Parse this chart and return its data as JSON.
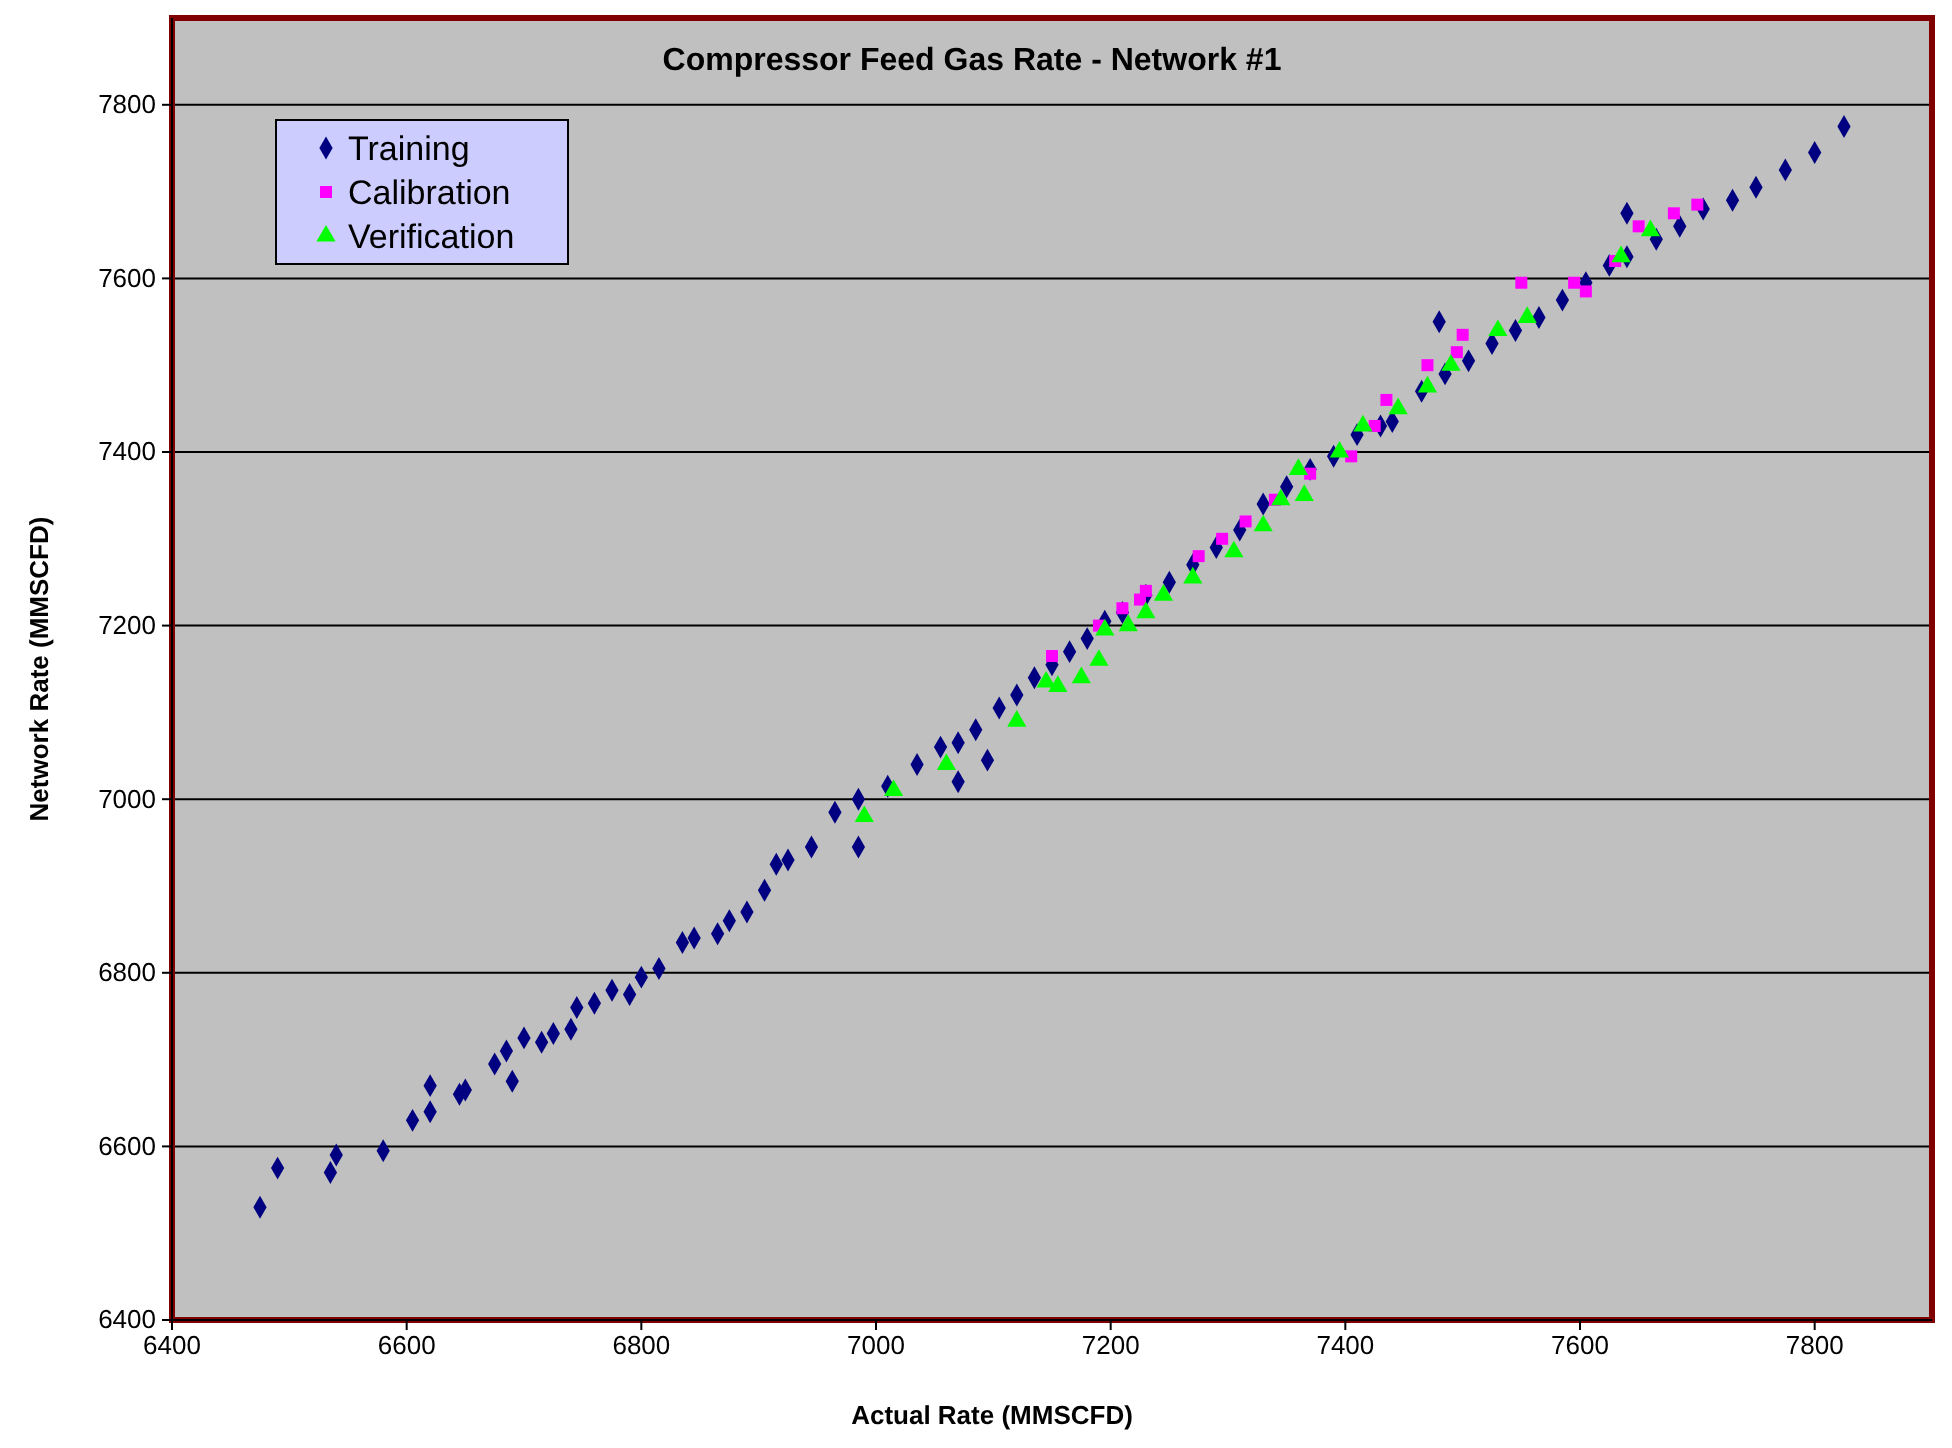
{
  "chart_data": {
    "type": "scatter",
    "title": "Compressor Feed Gas Rate - Network #1",
    "xlabel": "Actual Rate (MMSCFD)",
    "ylabel": "Network Rate (MMSCFD)",
    "xlim": [
      6400,
      7900
    ],
    "xticks": [
      6400,
      6600,
      6800,
      7000,
      7200,
      7400,
      7600,
      7800
    ],
    "ylim": [
      6400,
      7900
    ],
    "yticks": [
      6400,
      6600,
      6800,
      7000,
      7200,
      7400,
      7600,
      7800
    ],
    "grid": "y",
    "legend": "top left",
    "series": [
      {
        "name": "Training",
        "color": "#000080",
        "marker": "diamond",
        "x": [
          6475,
          6490,
          6535,
          6540,
          6580,
          6605,
          6620,
          6620,
          6645,
          6650,
          6675,
          6685,
          6690,
          6700,
          6715,
          6725,
          6740,
          6745,
          6760,
          6775,
          6790,
          6800,
          6815,
          6835,
          6845,
          6865,
          6875,
          6890,
          6905,
          6915,
          6925,
          6945,
          6965,
          6985,
          6985,
          7010,
          7035,
          7055,
          7070,
          7070,
          7085,
          7095,
          7105,
          7120,
          7135,
          7150,
          7165,
          7180,
          7195,
          7210,
          7230,
          7250,
          7270,
          7290,
          7310,
          7330,
          7350,
          7370,
          7390,
          7410,
          7430,
          7440,
          7465,
          7480,
          7485,
          7505,
          7525,
          7545,
          7565,
          7585,
          7605,
          7625,
          7640,
          7640,
          7665,
          7685,
          7705,
          7730,
          7750,
          7775,
          7800,
          7825
        ],
        "values": [
          6530,
          6575,
          6570,
          6590,
          6595,
          6630,
          6670,
          6640,
          6660,
          6665,
          6695,
          6710,
          6675,
          6725,
          6720,
          6730,
          6735,
          6760,
          6765,
          6780,
          6775,
          6795,
          6805,
          6835,
          6840,
          6845,
          6860,
          6870,
          6895,
          6925,
          6930,
          6945,
          6985,
          6945,
          7000,
          7015,
          7040,
          7060,
          7065,
          7020,
          7080,
          7045,
          7105,
          7120,
          7140,
          7155,
          7170,
          7185,
          7205,
          7215,
          7235,
          7250,
          7270,
          7290,
          7310,
          7340,
          7360,
          7380,
          7395,
          7420,
          7430,
          7435,
          7470,
          7550,
          7490,
          7505,
          7525,
          7540,
          7555,
          7575,
          7595,
          7615,
          7675,
          7625,
          7645,
          7660,
          7680,
          7690,
          7705,
          7725,
          7745,
          7775
        ]
      },
      {
        "name": "Calibration",
        "color": "#ff00ff",
        "marker": "square",
        "x": [
          7150,
          7190,
          7210,
          7225,
          7230,
          7275,
          7295,
          7315,
          7340,
          7370,
          7405,
          7425,
          7435,
          7470,
          7495,
          7500,
          7550,
          7595,
          7605,
          7630,
          7650,
          7680,
          7700
        ],
        "values": [
          7165,
          7200,
          7220,
          7230,
          7240,
          7280,
          7300,
          7320,
          7345,
          7375,
          7395,
          7430,
          7460,
          7500,
          7515,
          7535,
          7595,
          7595,
          7585,
          7620,
          7660,
          7675,
          7685
        ]
      },
      {
        "name": "Verification",
        "color": "#00ff00",
        "marker": "triangle",
        "x": [
          6990,
          7015,
          7060,
          7120,
          7145,
          7155,
          7175,
          7190,
          7195,
          7215,
          7230,
          7245,
          7270,
          7305,
          7330,
          7345,
          7365,
          7360,
          7395,
          7415,
          7445,
          7470,
          7490,
          7530,
          7555,
          7635,
          7660
        ],
        "values": [
          6980,
          7010,
          7040,
          7090,
          7135,
          7130,
          7140,
          7160,
          7195,
          7200,
          7215,
          7235,
          7255,
          7285,
          7315,
          7345,
          7350,
          7380,
          7400,
          7430,
          7450,
          7475,
          7500,
          7540,
          7555,
          7625,
          7655
        ]
      }
    ]
  }
}
